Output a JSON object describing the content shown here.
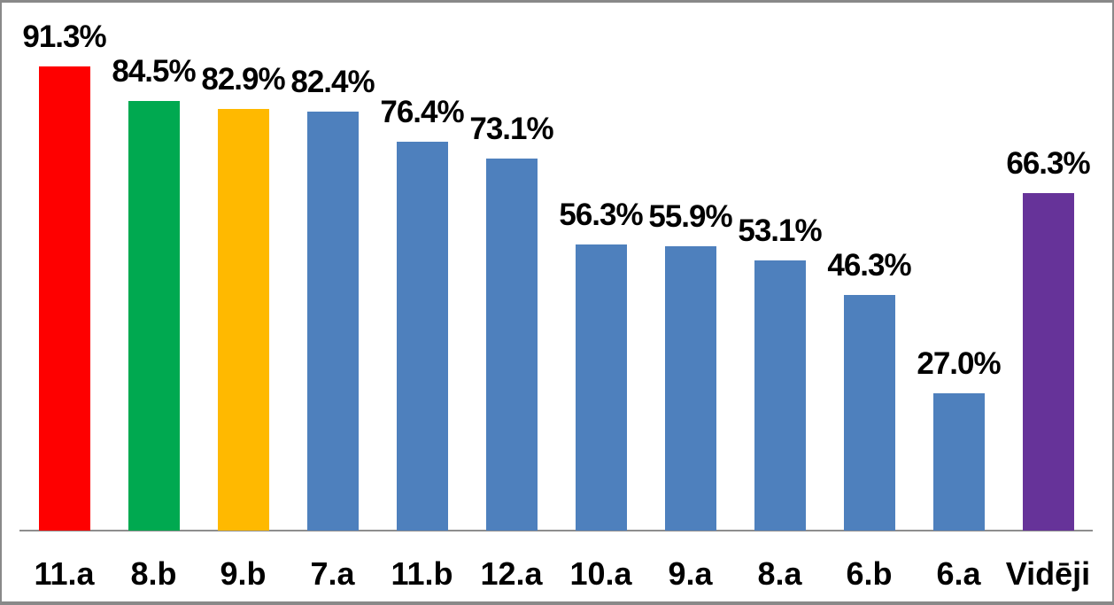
{
  "chart_data": {
    "type": "bar",
    "title": "",
    "xlabel": "",
    "ylabel": "",
    "legend": "none",
    "grid": false,
    "ylim": [
      0,
      100
    ],
    "value_format": "percent-one-decimal",
    "categories": [
      "11.a",
      "8.b",
      "9.b",
      "7.a",
      "11.b",
      "12.a",
      "10.a",
      "9.a",
      "8.a",
      "6.b",
      "6.a",
      "Vidēji"
    ],
    "values": [
      91.3,
      84.5,
      82.9,
      82.4,
      76.4,
      73.1,
      56.3,
      55.9,
      53.1,
      46.3,
      27.0,
      66.3
    ],
    "value_labels": [
      "91.3%",
      "84.5%",
      "82.9%",
      "82.4%",
      "76.4%",
      "73.1%",
      "56.3%",
      "55.9%",
      "53.1%",
      "46.3%",
      "27.0%",
      "66.3%"
    ],
    "bar_colors": [
      "#fe0000",
      "#00a950",
      "#ffb900",
      "#4e80bd",
      "#4e80bd",
      "#4e80bd",
      "#4e80bd",
      "#4e80bd",
      "#4e80bd",
      "#4e80bd",
      "#4e80bd",
      "#663399"
    ]
  },
  "colors": {
    "background": "#ffffff",
    "frame_border": "#898989",
    "axis_line": "#8e8e8e",
    "label_text": "#000000"
  }
}
